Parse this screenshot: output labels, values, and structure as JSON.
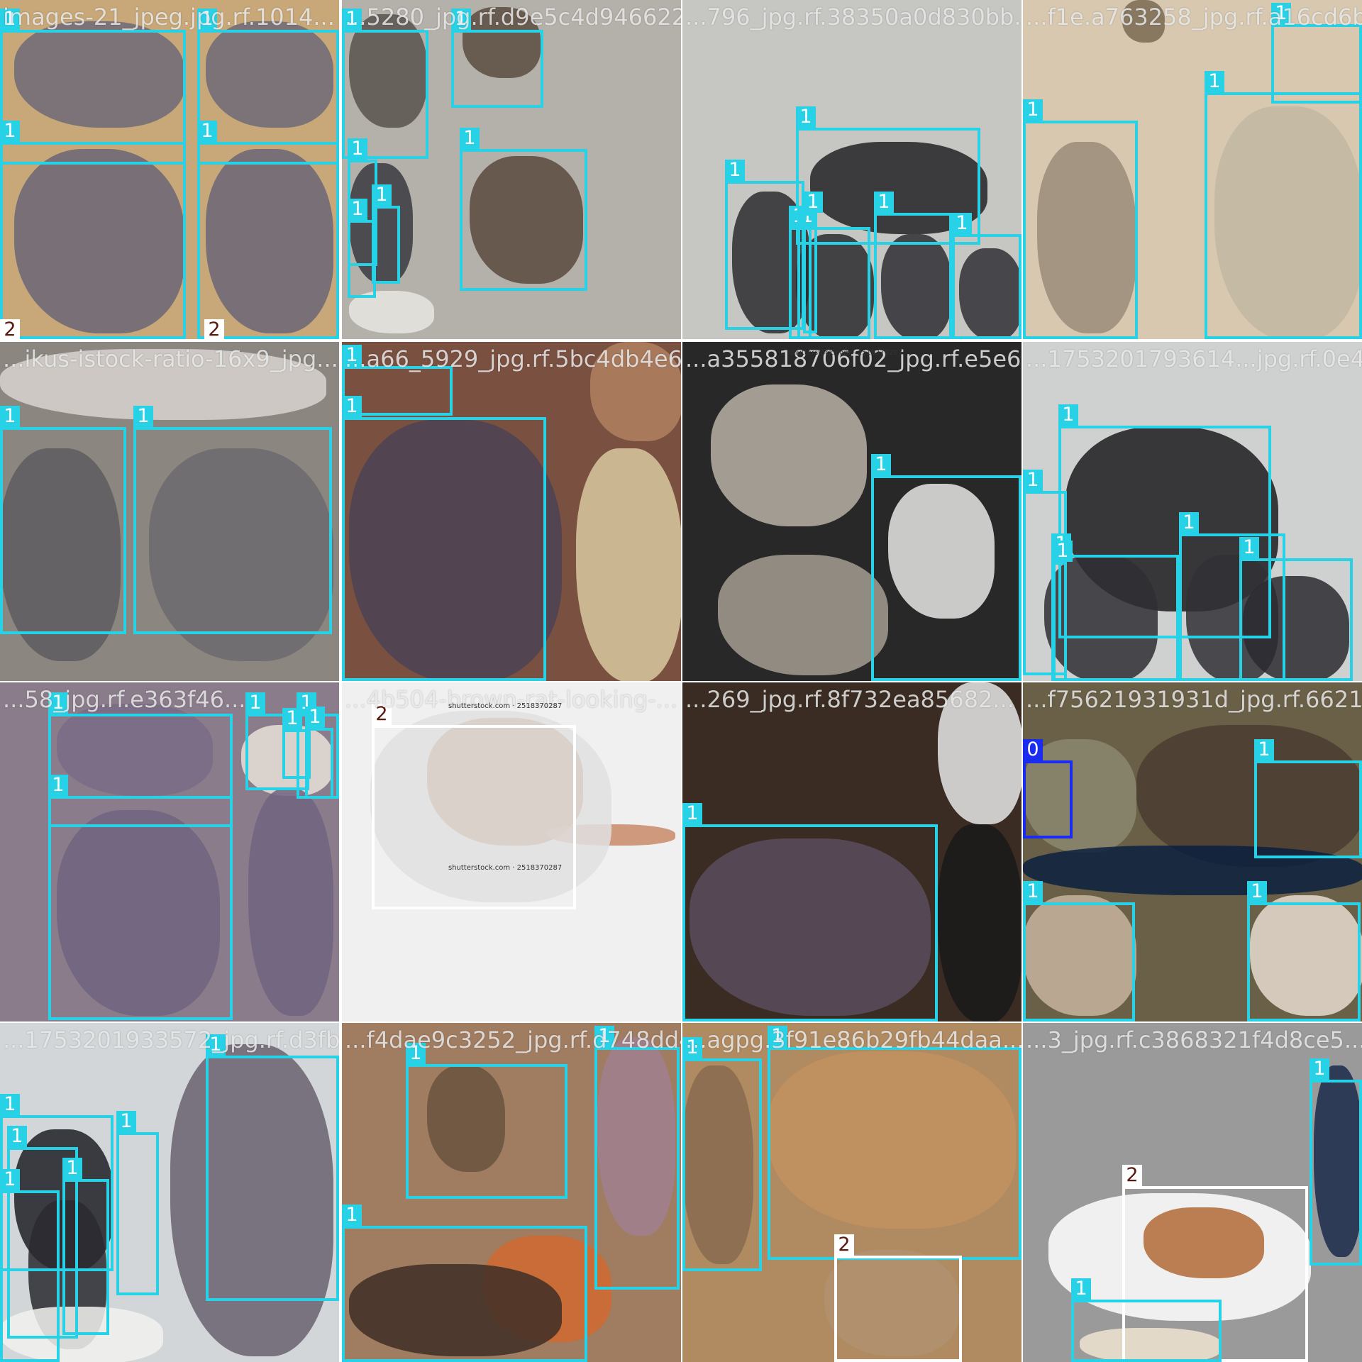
{
  "colors": {
    "class_0": "#1a2cf0",
    "class_1": "#28d2e6",
    "class_2": "#ffffff",
    "class_2_text": "#5a1a10",
    "filler": "#727272"
  },
  "tiles": [
    {
      "filename": "images-21_jpeg.jpg.rf.1014...",
      "bg": "#c8a878"
    },
    {
      "filename": "...5280_jpg.rf.d9e5c4d946622...",
      "bg": "#b4b0aa"
    },
    {
      "filename": "...796_jpg.rf.38350a0d830bb...",
      "bg": "#c6c6c2"
    },
    {
      "filename": "...f1e.a763258_jpg.rf.a16cd6b...",
      "bg": "#d8c8b0"
    },
    {
      "filename": "...ikus-istock-ratio-16x9_jpg...",
      "bg": "#8c8680"
    },
    {
      "filename": "...a66_5929_jpg.rf.5bc4db4e6...",
      "bg": "#7a5040"
    },
    {
      "filename": "...a355818706f02_jpg.rf.e5e6...",
      "bg": "#282828"
    },
    {
      "filename": "...1753201793614...jpg.rf.0e48...",
      "bg": "#cfd0d0"
    },
    {
      "filename": "...58_jpg.rf.e363f46...",
      "bg": "#8a7c8a"
    },
    {
      "filename": "...4b504-brown-rat-looking-...",
      "bg": "#f0f0f0"
    },
    {
      "filename": "...269_jpg.rf.8f732ea85682...",
      "bg": "#3a2c22"
    },
    {
      "filename": "...f75621931931d_jpg.rf.6621...",
      "bg": "#6a6048"
    },
    {
      "filename": "...1753201933572_jpg.rf.d3fba...",
      "bg": "#d2d6d8"
    },
    {
      "filename": "...f4dae9c3252_jpg.rf.d748dd4c...",
      "bg": "#a07c60"
    },
    {
      "filename": "...agpg.3f91e86b29fb44daa...",
      "bg": "#b08a60"
    },
    {
      "filename": "...3_jpg.rf.c3868321f4d8ce5...",
      "bg": "#9a9a9a"
    }
  ],
  "boxes": [
    {
      "tile": 0,
      "cls": "1"
    },
    {
      "tile": 0,
      "cls": "1"
    },
    {
      "tile": 0,
      "cls": "1"
    },
    {
      "tile": 0,
      "cls": "1"
    },
    {
      "tile": 0,
      "cls": "2"
    },
    {
      "tile": 0,
      "cls": "2"
    },
    {
      "tile": 1,
      "cls": "1"
    },
    {
      "tile": 1,
      "cls": "1"
    },
    {
      "tile": 1,
      "cls": "1"
    },
    {
      "tile": 1,
      "cls": "1"
    },
    {
      "tile": 1,
      "cls": "1"
    },
    {
      "tile": 1,
      "cls": "1"
    },
    {
      "tile": 2,
      "cls": "1"
    },
    {
      "tile": 2,
      "cls": "1"
    },
    {
      "tile": 2,
      "cls": "1"
    },
    {
      "tile": 2,
      "cls": "1"
    },
    {
      "tile": 2,
      "cls": "1"
    },
    {
      "tile": 2,
      "cls": "1"
    },
    {
      "tile": 2,
      "cls": "1"
    },
    {
      "tile": 3,
      "cls": "1"
    },
    {
      "tile": 3,
      "cls": "1"
    },
    {
      "tile": 3,
      "cls": "1"
    },
    {
      "tile": 4,
      "cls": "1"
    },
    {
      "tile": 4,
      "cls": "1"
    },
    {
      "tile": 5,
      "cls": "1"
    },
    {
      "tile": 5,
      "cls": "1"
    },
    {
      "tile": 6,
      "cls": "1"
    },
    {
      "tile": 7,
      "cls": "1"
    },
    {
      "tile": 7,
      "cls": "1"
    },
    {
      "tile": 7,
      "cls": "1"
    },
    {
      "tile": 7,
      "cls": "1"
    },
    {
      "tile": 7,
      "cls": "1"
    },
    {
      "tile": 7,
      "cls": "1"
    },
    {
      "tile": 8,
      "cls": "1"
    },
    {
      "tile": 8,
      "cls": "1"
    },
    {
      "tile": 8,
      "cls": "1"
    },
    {
      "tile": 8,
      "cls": "1"
    },
    {
      "tile": 8,
      "cls": "1"
    },
    {
      "tile": 8,
      "cls": "1"
    },
    {
      "tile": 8,
      "cls": "1"
    },
    {
      "tile": 9,
      "cls": "2"
    },
    {
      "tile": 10,
      "cls": "1"
    },
    {
      "tile": 11,
      "cls": "0"
    },
    {
      "tile": 11,
      "cls": "1"
    },
    {
      "tile": 11,
      "cls": "1"
    },
    {
      "tile": 11,
      "cls": "1"
    },
    {
      "tile": 12,
      "cls": "1"
    },
    {
      "tile": 12,
      "cls": "1"
    },
    {
      "tile": 12,
      "cls": "1"
    },
    {
      "tile": 12,
      "cls": "1"
    },
    {
      "tile": 12,
      "cls": "1"
    },
    {
      "tile": 12,
      "cls": "1"
    },
    {
      "tile": 13,
      "cls": "1"
    },
    {
      "tile": 13,
      "cls": "1"
    },
    {
      "tile": 13,
      "cls": "1"
    },
    {
      "tile": 14,
      "cls": "1"
    },
    {
      "tile": 14,
      "cls": "1"
    },
    {
      "tile": 14,
      "cls": "2"
    },
    {
      "tile": 15,
      "cls": "2"
    },
    {
      "tile": 15,
      "cls": "1"
    },
    {
      "tile": 15,
      "cls": "1"
    }
  ],
  "watermarks": [
    "shutterstock.com · 2518370287",
    "shutterstock.com · 2518370287",
    "shutterstock.com · 2518370287"
  ]
}
